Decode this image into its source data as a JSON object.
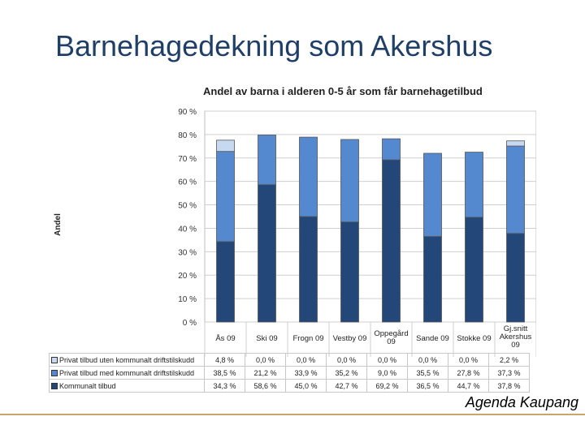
{
  "slide": {
    "title": "Barnehagedekning som Akershus",
    "footer": "Agenda Kaupang"
  },
  "colors": {
    "kommunalt": "#24477a",
    "privat_med": "#5589cf",
    "privat_uten": "#c6d9f1",
    "title": "#1f3f66",
    "footer_line": "#c9a46b"
  },
  "chart_data": {
    "type": "bar",
    "stacked": true,
    "title": "Andel av barna i alderen 0-5 år som får barnehagetilbud",
    "ylabel": "Andel",
    "xlabel": "",
    "ylim": [
      0,
      90
    ],
    "yticks": [
      0,
      10,
      20,
      30,
      40,
      50,
      60,
      70,
      80,
      90
    ],
    "ytick_labels": [
      "0 %",
      "10 %",
      "20 %",
      "30 %",
      "40 %",
      "50 %",
      "60 %",
      "70 %",
      "80 %",
      "90 %"
    ],
    "grid": true,
    "categories": [
      "Ås 09",
      "Ski 09",
      "Frogn 09",
      "Vestby 09",
      "Oppegård 09",
      "Sande 09",
      "Stokke 09",
      "Gj.snitt Akershus 09"
    ],
    "series": [
      {
        "name": "Kommunalt tilbud",
        "values": [
          34.3,
          58.6,
          45.0,
          42.7,
          69.2,
          36.5,
          44.7,
          37.8
        ],
        "labels": [
          "34,3 %",
          "58,6 %",
          "45,0 %",
          "42,7 %",
          "69,2 %",
          "36,5 %",
          "44,7 %",
          "37,8 %"
        ],
        "color": "#24477a"
      },
      {
        "name": "Privat tilbud med kommunalt driftstilskudd",
        "values": [
          38.5,
          21.2,
          33.9,
          35.2,
          9.0,
          35.5,
          27.8,
          37.3
        ],
        "labels": [
          "38,5 %",
          "21,2 %",
          "33,9 %",
          "35,2 %",
          "9,0 %",
          "35,5 %",
          "27,8 %",
          "37,3 %"
        ],
        "color": "#5589cf"
      },
      {
        "name": "Privat tilbud uten kommunalt driftstilskudd",
        "values": [
          4.8,
          0.0,
          0.0,
          0.0,
          0.0,
          0.0,
          0.0,
          2.2
        ],
        "labels": [
          "4,8 %",
          "0,0 %",
          "0,0 %",
          "0,0 %",
          "0,0 %",
          "0,0 %",
          "0,0 %",
          "2,2 %"
        ],
        "color": "#c6d9f1"
      }
    ],
    "legend": "table-bottom"
  }
}
